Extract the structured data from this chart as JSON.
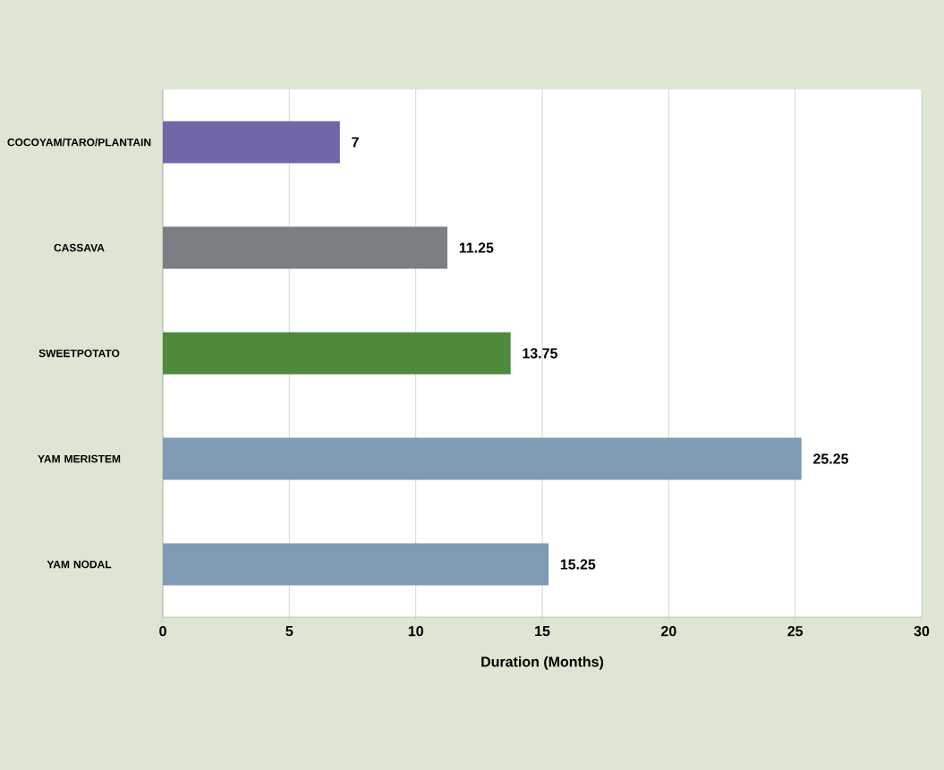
{
  "chart_data": {
    "type": "bar",
    "orientation": "horizontal",
    "xlabel": "Duration (Months)",
    "categories": [
      "COCOYAM/TARO/PLANTAIN",
      "CASSAVA",
      "SWEETPOTATO",
      "YAM MERISTEM",
      "YAM NODAL"
    ],
    "values": [
      7,
      11.25,
      13.75,
      25.25,
      15.25
    ],
    "colors": [
      "#7366a8",
      "#7a7f84",
      "#4f8a3c",
      "#7f9ab4",
      "#7f9ab4"
    ],
    "xlim": [
      0,
      30
    ],
    "xticks": [
      0,
      5,
      10,
      15,
      20,
      25,
      30
    ],
    "grid": "x",
    "data_labels": true
  }
}
